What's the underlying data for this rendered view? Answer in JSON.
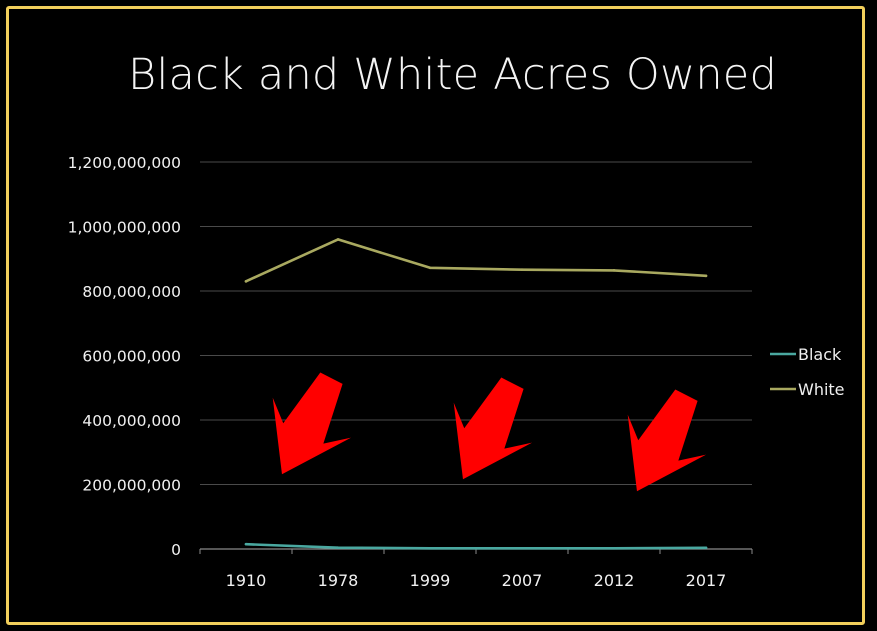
{
  "chart_data": {
    "type": "line",
    "title": "Black and White Acres Owned",
    "categories": [
      "1910",
      "1978",
      "1999",
      "2007",
      "2012",
      "2017"
    ],
    "y_ticks": [
      "0",
      "200,000,000",
      "400,000,000",
      "600,000,000",
      "800,000,000",
      "1,000,000,000",
      "1,200,000,000"
    ],
    "ylim": [
      0,
      1200000000
    ],
    "grid": true,
    "legend_position": "right",
    "series": [
      {
        "name": "Black",
        "color": "#4aa8a0",
        "values": [
          15000000,
          4000000,
          2300000,
          2300000,
          2300000,
          3800000
        ]
      },
      {
        "name": "White",
        "color": "#a9a960",
        "values": [
          830000000,
          960000000,
          872000000,
          866000000,
          864000000,
          847000000
        ]
      }
    ],
    "annotations": [
      {
        "type": "arrow-icon",
        "color": "#ff0000",
        "points_to": "1978"
      },
      {
        "type": "arrow-icon",
        "color": "#ff0000",
        "points_to": "2007"
      },
      {
        "type": "arrow-icon",
        "color": "#ff0000",
        "points_to": "2017"
      }
    ]
  }
}
